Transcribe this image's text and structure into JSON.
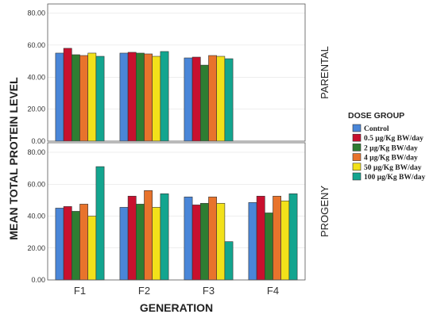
{
  "chart_data": {
    "type": "bar",
    "xlabel": "GENERATION",
    "ylabel": "MEAN TOTAL PROTEIN LEVEL",
    "categories": [
      "F1",
      "F2",
      "F3",
      "F4"
    ],
    "ylim": [
      0,
      80
    ],
    "yticks": [
      "0.00",
      "20.00",
      "40.00",
      "60.00",
      "80.00"
    ],
    "legend_title": "DOSE GROUP",
    "legend_position": "right",
    "series": [
      {
        "name": "Control",
        "color": "#4a86d8"
      },
      {
        "name": "0.5 µg/Kg BW/day",
        "color": "#c8102e"
      },
      {
        "name": "2 µg/Kg BW/day",
        "color": "#2e7d32"
      },
      {
        "name": "4 µg/Kg BW/day",
        "color": "#e8732c"
      },
      {
        "name": "50 µg/Kg BW/day",
        "color": "#f2e11a"
      },
      {
        "name": "100 µg/Kg BW/day",
        "color": "#13a58f"
      }
    ],
    "panels": [
      {
        "title": "PARENTAL",
        "values": [
          [
            55,
            58,
            54,
            53.5,
            55,
            53
          ],
          [
            55,
            55.5,
            55,
            54.5,
            53,
            56
          ],
          [
            52,
            52.5,
            47.5,
            53.5,
            53,
            51.5
          ],
          [
            null,
            null,
            null,
            null,
            null,
            null
          ]
        ]
      },
      {
        "title": "PROGENY",
        "values": [
          [
            45,
            46,
            43,
            47.5,
            40,
            71
          ],
          [
            45.5,
            52.5,
            47.5,
            56,
            45.5,
            54
          ],
          [
            52,
            47,
            48,
            52,
            48,
            24
          ],
          [
            48.5,
            52.5,
            42,
            52.5,
            49.5,
            54
          ]
        ]
      }
    ]
  }
}
